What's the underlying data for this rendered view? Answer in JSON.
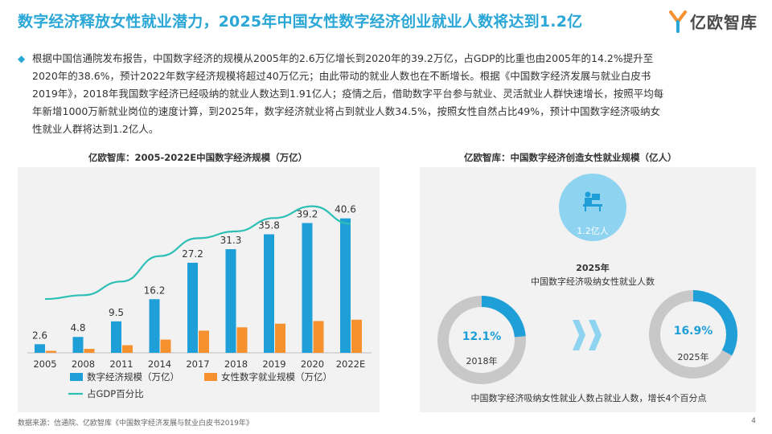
{
  "header": {
    "title": "数字经济释放女性就业潜力，2025年中国女性数字经济创业就业人数将达到1.2亿",
    "logo_text": "亿欧智库"
  },
  "bullet": {
    "line1": "根据中国信通院发布报告，中国数字经济的规模从2005年的2.6万亿增长到2020年的39.2万亿，占GDP的比重也由2005年的14.2%提升至",
    "line2": "2020年的38.6%，预计2022年数字经济规模将超过40万亿元；由此带动的就业人数也在不断增长。根据《中国数字经济发展与就业白皮书",
    "line3": "2019年》，2018年我国数字经济已经吸纳的就业人数达到1.91亿人；疫情之后，借助数字平台参与就业、灵活就业人群快速增长，按照平均每",
    "line4": "年新增1000万新就业岗位的速度计算，到2025年，数字经济就业将占到就业人数34.5%，按照女性自然占比49%，预计中国数字经济吸纳女",
    "line5": "性就业人群将达到1.2亿人。"
  },
  "chart_data": [
    {
      "type": "bar",
      "title": "亿欧智库：2005-2022E中国数字经济规模（万亿）",
      "categories": [
        "2005",
        "2008",
        "2011",
        "2014",
        "2017",
        "2018",
        "2019",
        "2020",
        "2022E"
      ],
      "series": [
        {
          "name": "数字经济规模（万亿）",
          "color": "#1f9fd8",
          "values": [
            2.6,
            4.8,
            9.5,
            16.2,
            27.2,
            31.3,
            35.8,
            39.2,
            40.6
          ],
          "labels": [
            "2.6",
            "4.8",
            "9.5",
            "16.2",
            "27.2",
            "31.3",
            "35.8",
            "39.2",
            "40.6"
          ]
        },
        {
          "name": "女性数字就业规模（万亿）",
          "color": "#f5922f",
          "values": [
            0.6,
            1.2,
            2.3,
            4.0,
            6.7,
            7.7,
            8.8,
            9.6,
            10.0
          ]
        },
        {
          "name": "占GDP百分比",
          "color": "#2cbfb5",
          "type": "line",
          "values": [
            14.2,
            15.2,
            18.8,
            25.5,
            30.2,
            32.0,
            35.5,
            38.6,
            34.0
          ]
        }
      ],
      "ylim": [
        0,
        50
      ],
      "legend": "bottom"
    },
    {
      "type": "pie",
      "title": "亿欧智库：中国数字经济创造女性就业规模（亿人）",
      "total_label": "1.2亿人",
      "total_caption_year": "2025年",
      "total_caption": "中国数字经济吸纳女性就业人数",
      "donuts": [
        {
          "year": "2018年",
          "value": 12.1,
          "label": "12.1%"
        },
        {
          "year": "2025年",
          "value": 16.9,
          "label": "16.9%"
        }
      ],
      "footnote": "中国数字经济吸纳女性就业人数占就业人数，增长4个百分点"
    }
  ],
  "footer": {
    "source": "数据来源：信通院、亿欧智库《中国数字经济发展与就业白皮书2019年》",
    "page": "4"
  },
  "colors": {
    "accent": "#2aa7d6",
    "bar_blue": "#1f9fd8",
    "bar_orange": "#f5922f",
    "line_teal": "#2cbfb5",
    "donut_gray": "#c8c8c8",
    "circle_light": "#8ed4f1"
  }
}
